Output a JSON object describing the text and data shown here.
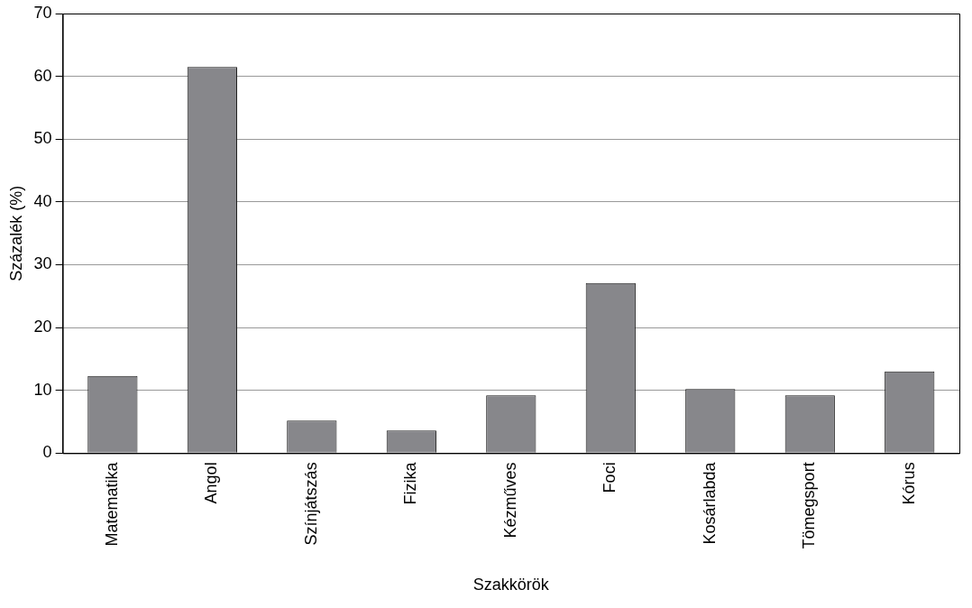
{
  "chart_data": {
    "type": "bar",
    "xlabel": "Szakkörök",
    "ylabel": "Százalék (%)",
    "categories": [
      "Matematika",
      "Angol",
      "Színjátszás",
      "Fizika",
      "Kézműves",
      "Foci",
      "Kosárlabda",
      "Tömegsport",
      "Kórus"
    ],
    "values": [
      12.3,
      61.5,
      5.2,
      3.6,
      9.2,
      27.1,
      10.2,
      9.2,
      13.0
    ],
    "color": "#87878b",
    "ylim": [
      0,
      70
    ],
    "yticks": [
      0,
      10,
      20,
      30,
      40,
      50,
      60,
      70
    ],
    "grid": "y",
    "legend": false
  }
}
